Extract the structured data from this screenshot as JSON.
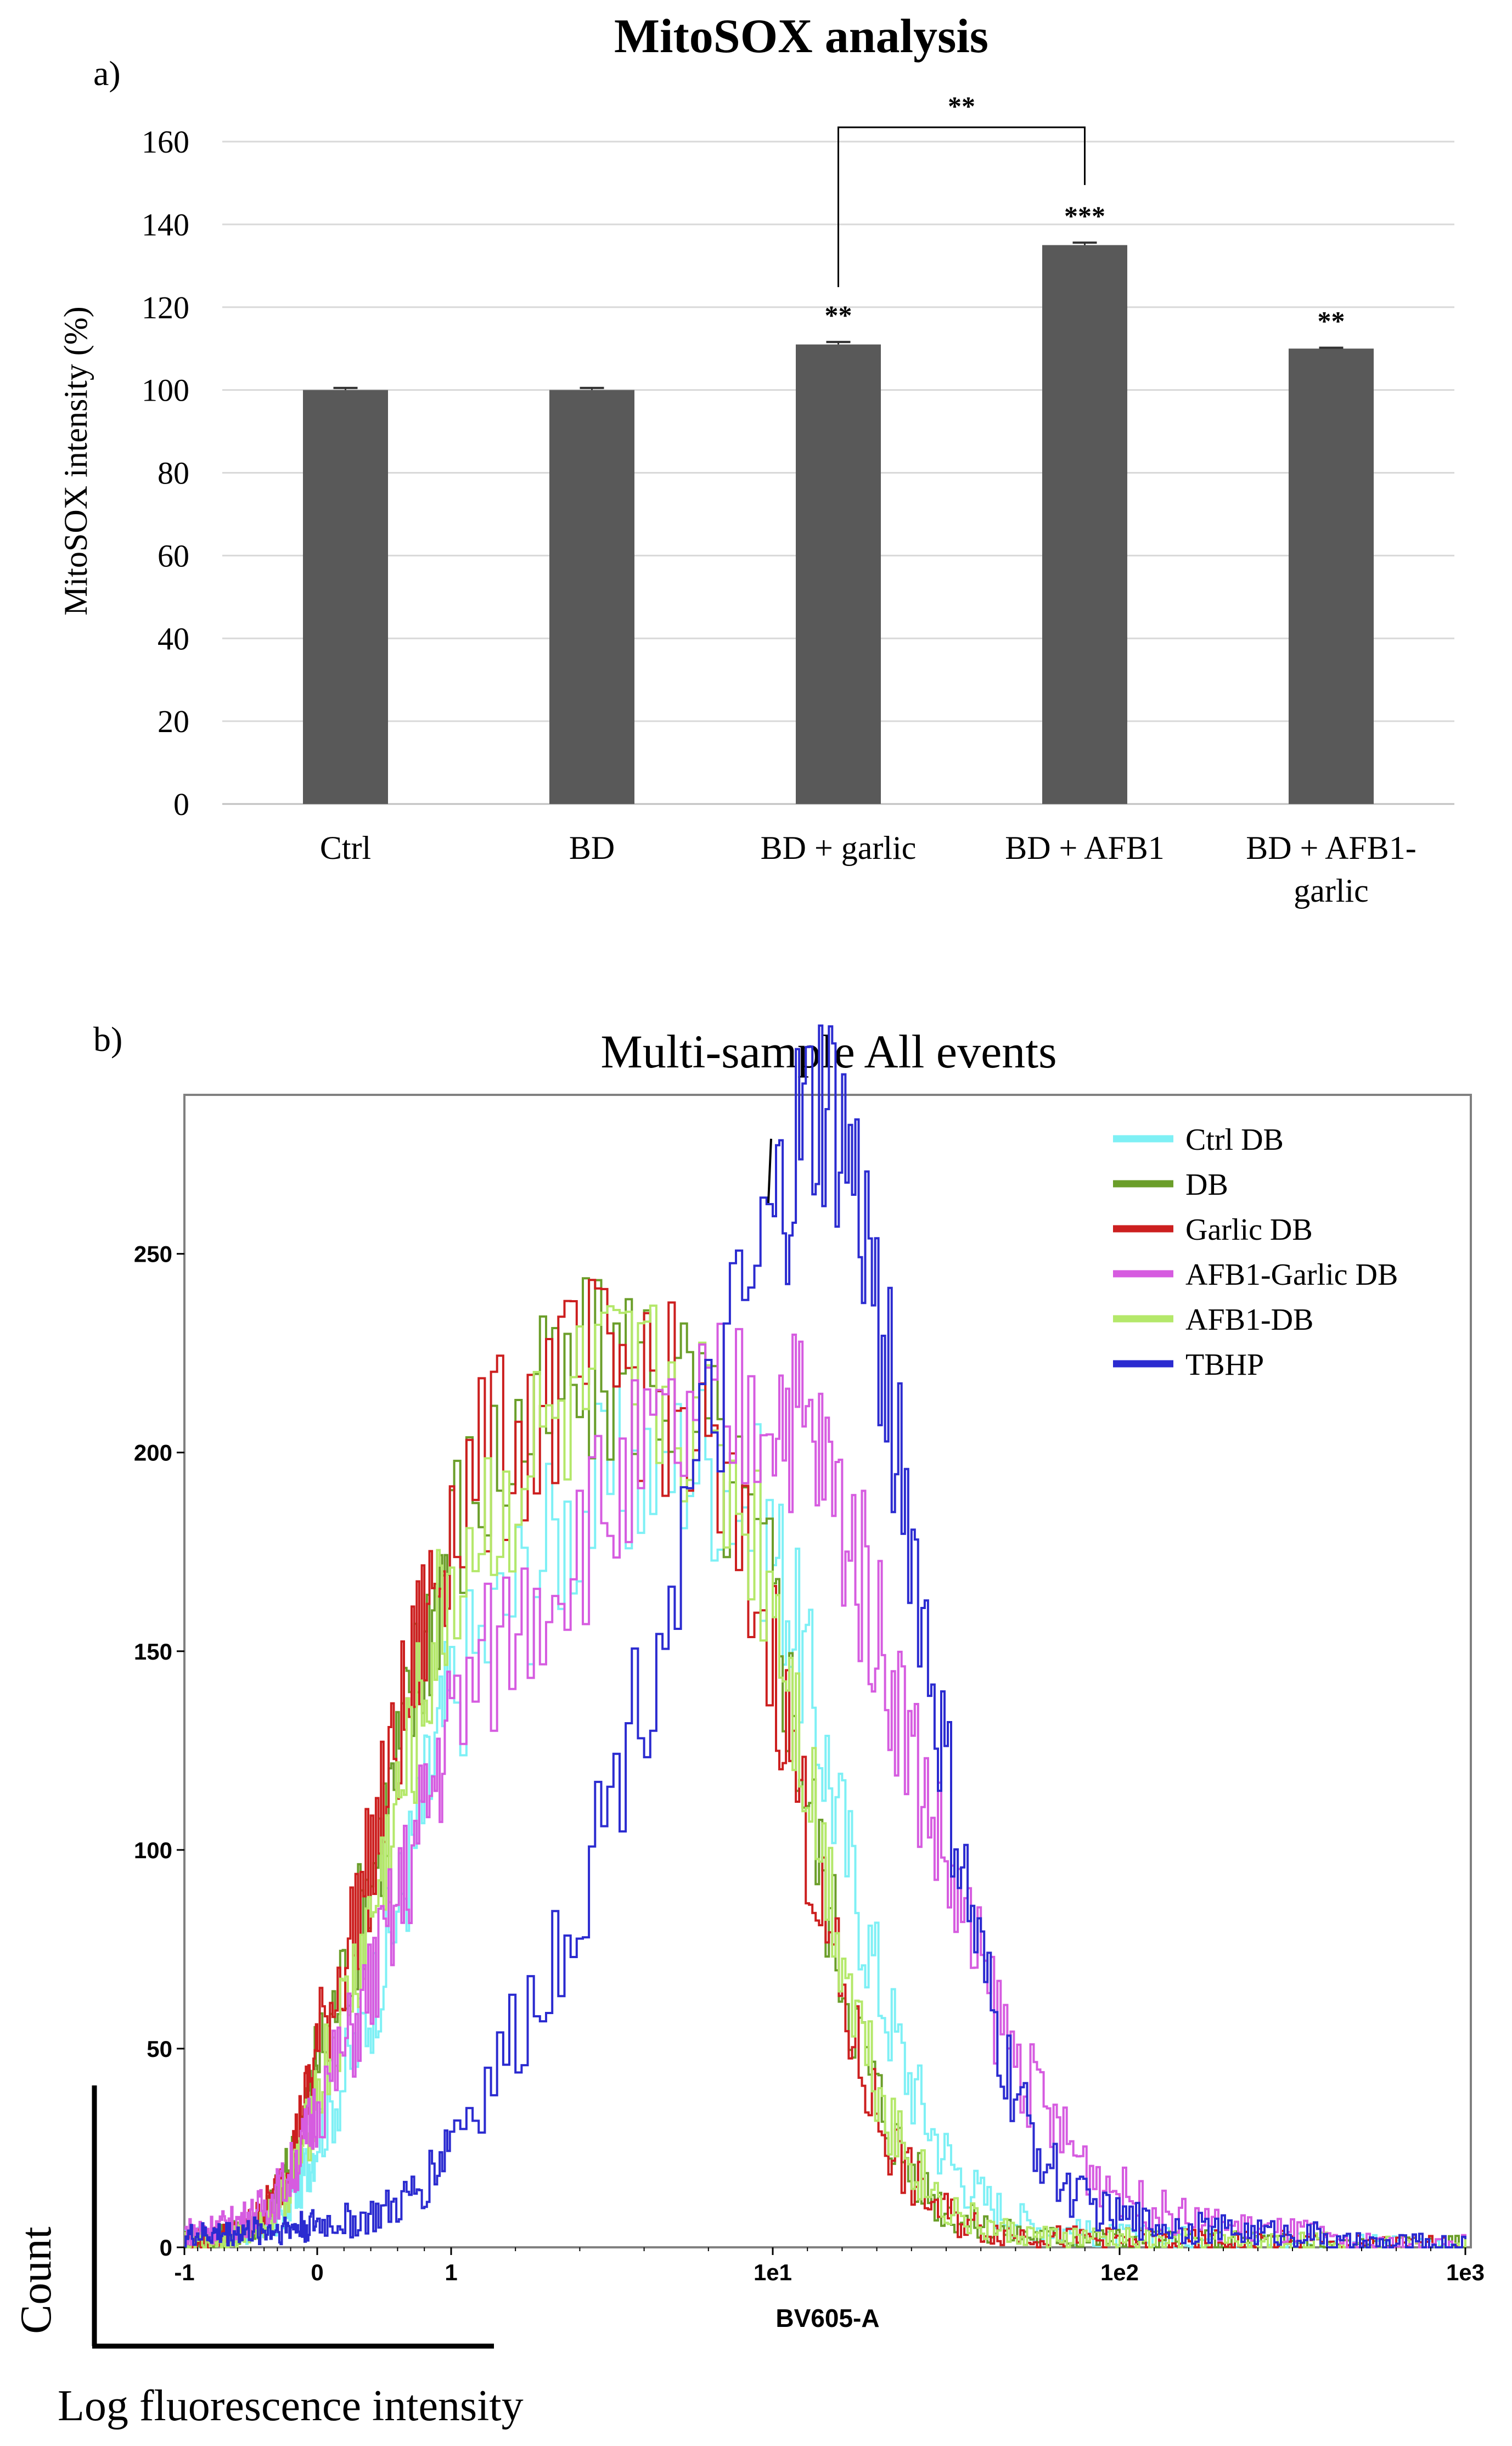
{
  "panel_a": {
    "panel_label": "a)",
    "chart_data": {
      "type": "bar",
      "title": "MitoSOX analysis",
      "xlabel": "",
      "ylabel": "MitoSOX  intensity (%)",
      "ylim": [
        0,
        160
      ],
      "yticks": [
        "0",
        "20",
        "40",
        "60",
        "80",
        "100",
        "120",
        "140",
        "160"
      ],
      "categories": [
        "Ctrl",
        "BD",
        "BD + garlic",
        "BD + AFB1",
        "BD + AFB1-garlic"
      ],
      "category_lines": [
        [
          "Ctrl"
        ],
        [
          "BD"
        ],
        [
          "BD + garlic"
        ],
        [
          "BD + AFB1"
        ],
        [
          "BD + AFB1-",
          "garlic"
        ]
      ],
      "values": [
        100,
        100,
        111,
        135,
        110
      ],
      "errors": [
        0.5,
        0.5,
        0.6,
        0.6,
        0.2
      ],
      "significance": [
        "",
        "",
        "**",
        "***",
        "**"
      ],
      "bracket": {
        "from": 2,
        "to": 3,
        "label": "**"
      },
      "bar_color": "#595959",
      "grid": true
    }
  },
  "panel_b": {
    "panel_label": "b)",
    "chart_data": {
      "type": "line",
      "title": "Multi-sample All events",
      "xlabel": "BV605-A",
      "x_scale": "log (biexponential)",
      "xticks": [
        "-1",
        "0",
        "1",
        "1e1",
        "1e2",
        "1e3"
      ],
      "ylim": [
        0,
        290
      ],
      "yticks": [
        "0",
        "50",
        "100",
        "150",
        "200",
        "250"
      ],
      "legend_position": "top-right",
      "series": [
        {
          "name": "Ctrl DB",
          "color": "#7ef0f5",
          "peak_x": 0.85,
          "peak_y": 190,
          "width_l": 0.42,
          "width_r": 0.3,
          "tail": 10
        },
        {
          "name": "DB",
          "color": "#6b9e2a",
          "peak_x": 0.78,
          "peak_y": 215,
          "width_l": 0.44,
          "width_r": 0.27,
          "tail": 8
        },
        {
          "name": "Garlic DB",
          "color": "#cc1f1f",
          "peak_x": 0.76,
          "peak_y": 213,
          "width_l": 0.44,
          "width_r": 0.27,
          "tail": 8
        },
        {
          "name": "AFB1-Garlic DB",
          "color": "#d65ce0",
          "peak_x": 0.98,
          "peak_y": 195,
          "width_l": 0.5,
          "width_r": 0.4,
          "tail": 20
        },
        {
          "name": "AFB1-DB",
          "color": "#b4e86a",
          "peak_x": 0.8,
          "peak_y": 210,
          "width_l": 0.43,
          "width_r": 0.27,
          "tail": 7
        },
        {
          "name": "TBHP",
          "color": "#2b2bd0",
          "peak_x": 1.13,
          "peak_y": 270,
          "width_l": 0.28,
          "width_r": 0.27,
          "tail": 16
        }
      ]
    },
    "outer_axis_labels": {
      "y": "Count",
      "x": "Log fluorescence intensity"
    }
  }
}
